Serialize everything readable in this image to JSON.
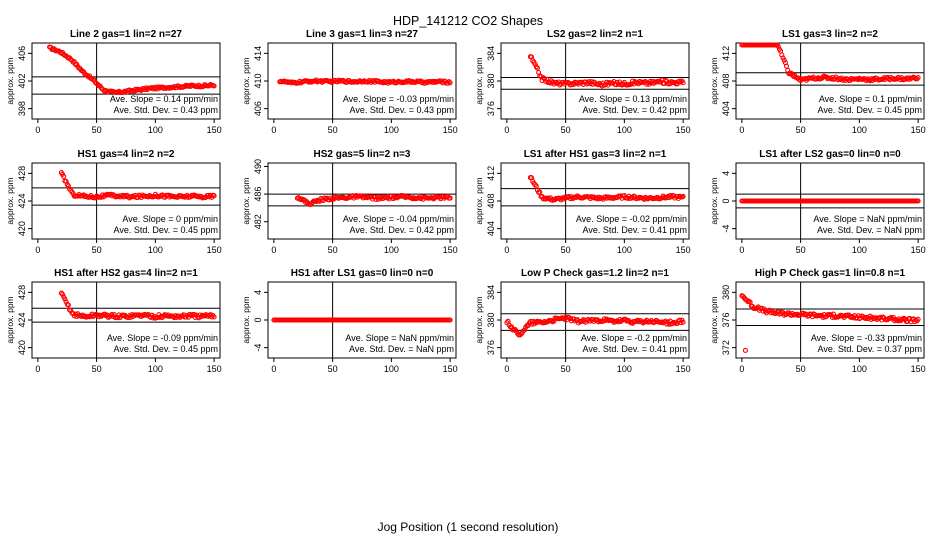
{
  "figure": {
    "title": "HDP_141212  CO2 Shapes",
    "xlabel": "Jog Position (1 second resolution)"
  },
  "colors": {
    "points": "#ff0000",
    "axes": "#000000"
  },
  "chart_data": [
    {
      "type": "scatter",
      "title": "Line 2 gas=1 lin=2 n=27",
      "ylabel": "approx. ppm",
      "xlim": [
        -5,
        155
      ],
      "ylim": [
        396.5,
        407.5
      ],
      "xticks": [
        0,
        50,
        100,
        150
      ],
      "yticks": [
        398,
        402,
        406
      ],
      "hlines": [
        402.6,
        400.1
      ],
      "vline": 50,
      "slope_text": "Ave. Slope = 0.14  ppm/min",
      "sd_text": "Ave. Std. Dev. = 0.43  ppm",
      "series": [
        {
          "x_start": 10,
          "x_end": 150,
          "y": [
            406.8,
            406.2,
            405.1,
            403.4,
            402.1,
            400.6,
            400.3,
            400.5,
            400.7,
            400.9,
            401.0,
            401.1,
            401.2,
            401.3,
            401.3,
            401.4
          ],
          "noise": 0.15
        }
      ]
    },
    {
      "type": "scatter",
      "title": "Line 3 gas=1 lin=3 n=27",
      "ylabel": "approx. ppm",
      "xlim": [
        -5,
        155
      ],
      "ylim": [
        404.5,
        415.5
      ],
      "xticks": [
        0,
        50,
        100,
        150
      ],
      "yticks": [
        406,
        410,
        414
      ],
      "hlines": [],
      "vline": 50,
      "slope_text": "Ave. Slope = -0.03  ppm/min",
      "sd_text": "Ave. Std. Dev. = 0.43  ppm",
      "series": [
        {
          "x_start": 5,
          "x_end": 150,
          "y": [
            410.0,
            409.7,
            409.9,
            410.0,
            409.9,
            410.0,
            409.9,
            410.0,
            409.9,
            409.8,
            409.9,
            409.9,
            409.8,
            409.9,
            409.8
          ],
          "noise": 0.15
        }
      ]
    },
    {
      "type": "scatter",
      "title": "LS2 gas=2 lin=2 n=1",
      "ylabel": "approx. ppm",
      "xlim": [
        -5,
        155
      ],
      "ylim": [
        374.5,
        385.5
      ],
      "xticks": [
        0,
        50,
        100,
        150
      ],
      "yticks": [
        376,
        380,
        384
      ],
      "hlines": [
        380.5,
        378.8
      ],
      "vline": 50,
      "slope_text": "Ave. Slope = 0.13  ppm/min",
      "sd_text": "Ave. Std. Dev. = 0.42  ppm",
      "series": [
        {
          "x_start": 20,
          "x_end": 150,
          "y": [
            383.6,
            380.3,
            379.7,
            379.6,
            379.7,
            379.8,
            379.5,
            379.7,
            379.6,
            379.8,
            379.7,
            379.9,
            379.8,
            379.8
          ],
          "noise": 0.25
        }
      ]
    },
    {
      "type": "scatter",
      "title": "LS1 gas=3 lin=2 n=2",
      "ylabel": "approx. ppm",
      "xlim": [
        -5,
        155
      ],
      "ylim": [
        402.5,
        413.5
      ],
      "xticks": [
        0,
        50,
        100,
        150
      ],
      "yticks": [
        404,
        408,
        412
      ],
      "hlines": [
        409.2,
        407.4
      ],
      "vline": 50,
      "slope_text": "Ave. Slope = 0.1  ppm/min",
      "sd_text": "Ave. Std. Dev. = 0.45  ppm",
      "series": [
        {
          "x_start": 0,
          "x_end": 150,
          "y": [
            413.5,
            413.5,
            413.5,
            413.4,
            409.2,
            408.1,
            408.4,
            408.5,
            408.4,
            408.2,
            408.3,
            408.2,
            408.3,
            408.4,
            408.3,
            408.5
          ],
          "noise": 0.2
        }
      ]
    },
    {
      "type": "scatter",
      "title": "HS1 gas=4 lin=2 n=2",
      "ylabel": "approx. ppm",
      "xlim": [
        -5,
        155
      ],
      "ylim": [
        418.5,
        429.5
      ],
      "xticks": [
        0,
        50,
        100,
        150
      ],
      "yticks": [
        420,
        424,
        428
      ],
      "hlines": [
        425.9,
        423.4
      ],
      "vline": 50,
      "slope_text": "Ave. Slope = 0  ppm/min",
      "sd_text": "Ave. Std. Dev. = 0.45  ppm",
      "series": [
        {
          "x_start": 20,
          "x_end": 150,
          "y": [
            428.0,
            424.9,
            424.7,
            424.6,
            424.8,
            424.7,
            424.6,
            424.7,
            424.8,
            424.7,
            424.6,
            424.7,
            424.6,
            424.7
          ],
          "noise": 0.2
        }
      ]
    },
    {
      "type": "scatter",
      "title": "HS2 gas=5 lin=2 n=3",
      "ylabel": "approx. ppm",
      "xlim": [
        -5,
        155
      ],
      "ylim": [
        479.5,
        490.5
      ],
      "xticks": [
        0,
        50,
        100,
        150
      ],
      "yticks": [
        482,
        486,
        490
      ],
      "hlines": [
        486.0,
        484.3
      ],
      "vline": 50,
      "slope_text": "Ave. Slope = -0.04  ppm/min",
      "sd_text": "Ave. Std. Dev. = 0.42  ppm",
      "series": [
        {
          "x_start": 20,
          "x_end": 150,
          "y": [
            485.6,
            484.6,
            485.2,
            485.4,
            485.5,
            485.6,
            485.5,
            485.4,
            485.5,
            485.6,
            485.5,
            485.4,
            485.5,
            485.5
          ],
          "noise": 0.2
        }
      ]
    },
    {
      "type": "scatter",
      "title": "LS1 after HS1 gas=3 lin=2 n=1",
      "ylabel": "approx. ppm",
      "xlim": [
        -5,
        155
      ],
      "ylim": [
        402.5,
        413.5
      ],
      "xticks": [
        0,
        50,
        100,
        150
      ],
      "yticks": [
        404,
        408,
        412
      ],
      "hlines": [
        409.8,
        407.3
      ],
      "vline": 50,
      "slope_text": "Ave. Slope = -0.02  ppm/min",
      "sd_text": "Ave. Std. Dev. = 0.41  ppm",
      "series": [
        {
          "x_start": 20,
          "x_end": 150,
          "y": [
            411.5,
            408.5,
            408.2,
            408.4,
            408.6,
            408.5,
            408.4,
            408.5,
            408.6,
            408.5,
            408.4,
            408.5,
            408.6,
            408.5
          ],
          "noise": 0.2
        }
      ]
    },
    {
      "type": "scatter",
      "title": "LS1 after LS2 gas=0 lin=0 n=0",
      "ylabel": "approx. ppm",
      "xlim": [
        -5,
        155
      ],
      "ylim": [
        -5.5,
        5.5
      ],
      "xticks": [
        0,
        50,
        100,
        150
      ],
      "yticks": [
        -4,
        0,
        4
      ],
      "hlines": [
        1,
        -1
      ],
      "vline": 50,
      "slope_text": "Ave. Slope =  NaN  ppm/min",
      "sd_text": "Ave. Std. Dev. =  NaN  ppm",
      "series": [
        {
          "x_start": 0,
          "x_end": 150,
          "y": [
            0,
            0
          ],
          "noise": 0
        }
      ]
    },
    {
      "type": "scatter",
      "title": "HS1 after HS2 gas=4 lin=2 n=1",
      "ylabel": "approx. ppm",
      "xlim": [
        -5,
        155
      ],
      "ylim": [
        418.5,
        429.5
      ],
      "xticks": [
        0,
        50,
        100,
        150
      ],
      "yticks": [
        420,
        424,
        428
      ],
      "hlines": [
        425.7,
        423.7
      ],
      "vline": 50,
      "slope_text": "Ave. Slope = -0.09  ppm/min",
      "sd_text": "Ave. Std. Dev. = 0.45  ppm",
      "series": [
        {
          "x_start": 20,
          "x_end": 150,
          "y": [
            427.8,
            424.8,
            424.5,
            424.7,
            424.6,
            424.5,
            424.6,
            424.7,
            424.5,
            424.6,
            424.5,
            424.6,
            424.5,
            424.6
          ],
          "noise": 0.25
        }
      ]
    },
    {
      "type": "scatter",
      "title": "HS1 after LS1 gas=0 lin=0 n=0",
      "ylabel": "approx. ppm",
      "xlim": [
        -5,
        155
      ],
      "ylim": [
        -5.5,
        5.5
      ],
      "xticks": [
        0,
        50,
        100,
        150
      ],
      "yticks": [
        -4,
        0,
        4
      ],
      "hlines": [],
      "vline": 50,
      "slope_text": "Ave. Slope =  NaN  ppm/min",
      "sd_text": "Ave. Std. Dev. =  NaN  ppm",
      "series": [
        {
          "x_start": 0,
          "x_end": 150,
          "y": [
            0,
            0
          ],
          "noise": 0
        }
      ]
    },
    {
      "type": "scatter",
      "title": "Low P Check gas=1.2 lin=2 n=1",
      "ylabel": "approx. ppm",
      "xlim": [
        -5,
        155
      ],
      "ylim": [
        374.5,
        385.5
      ],
      "xticks": [
        0,
        50,
        100,
        150
      ],
      "yticks": [
        376,
        380,
        384
      ],
      "hlines": [
        380.9,
        378.5
      ],
      "vline": 50,
      "slope_text": "Ave. Slope = -0.2  ppm/min",
      "sd_text": "Ave. Std. Dev. = 0.41  ppm",
      "series": [
        {
          "x_start": 0,
          "x_end": 150,
          "y": [
            379.8,
            377.8,
            379.6,
            379.7,
            380.0,
            380.3,
            379.8,
            379.9,
            380.0,
            379.8,
            379.9,
            379.7,
            379.8,
            379.7,
            379.6,
            379.8
          ],
          "noise": 0.25
        }
      ]
    },
    {
      "type": "scatter",
      "title": "High P Check gas=1 lin=0.8 n=1",
      "ylabel": "approx. ppm",
      "xlim": [
        -5,
        155
      ],
      "ylim": [
        370.5,
        381.5
      ],
      "xticks": [
        0,
        50,
        100,
        150
      ],
      "yticks": [
        372,
        376,
        380
      ],
      "hlines": [
        377.6,
        375.2
      ],
      "vline": 50,
      "slope_text": "Ave. Slope = -0.33  ppm/min",
      "sd_text": "Ave. Std. Dev. = 0.37  ppm",
      "series": [
        {
          "x_start": 0,
          "x_end": 150,
          "y": [
            379.6,
            377.9,
            377.3,
            377.0,
            376.9,
            376.8,
            376.7,
            376.6,
            376.6,
            376.5,
            376.4,
            376.3,
            376.2,
            376.1,
            376.0,
            375.9
          ],
          "noise": 0.25
        }
      ],
      "outliers": [
        {
          "x": 3,
          "y": 371.6
        }
      ]
    }
  ]
}
